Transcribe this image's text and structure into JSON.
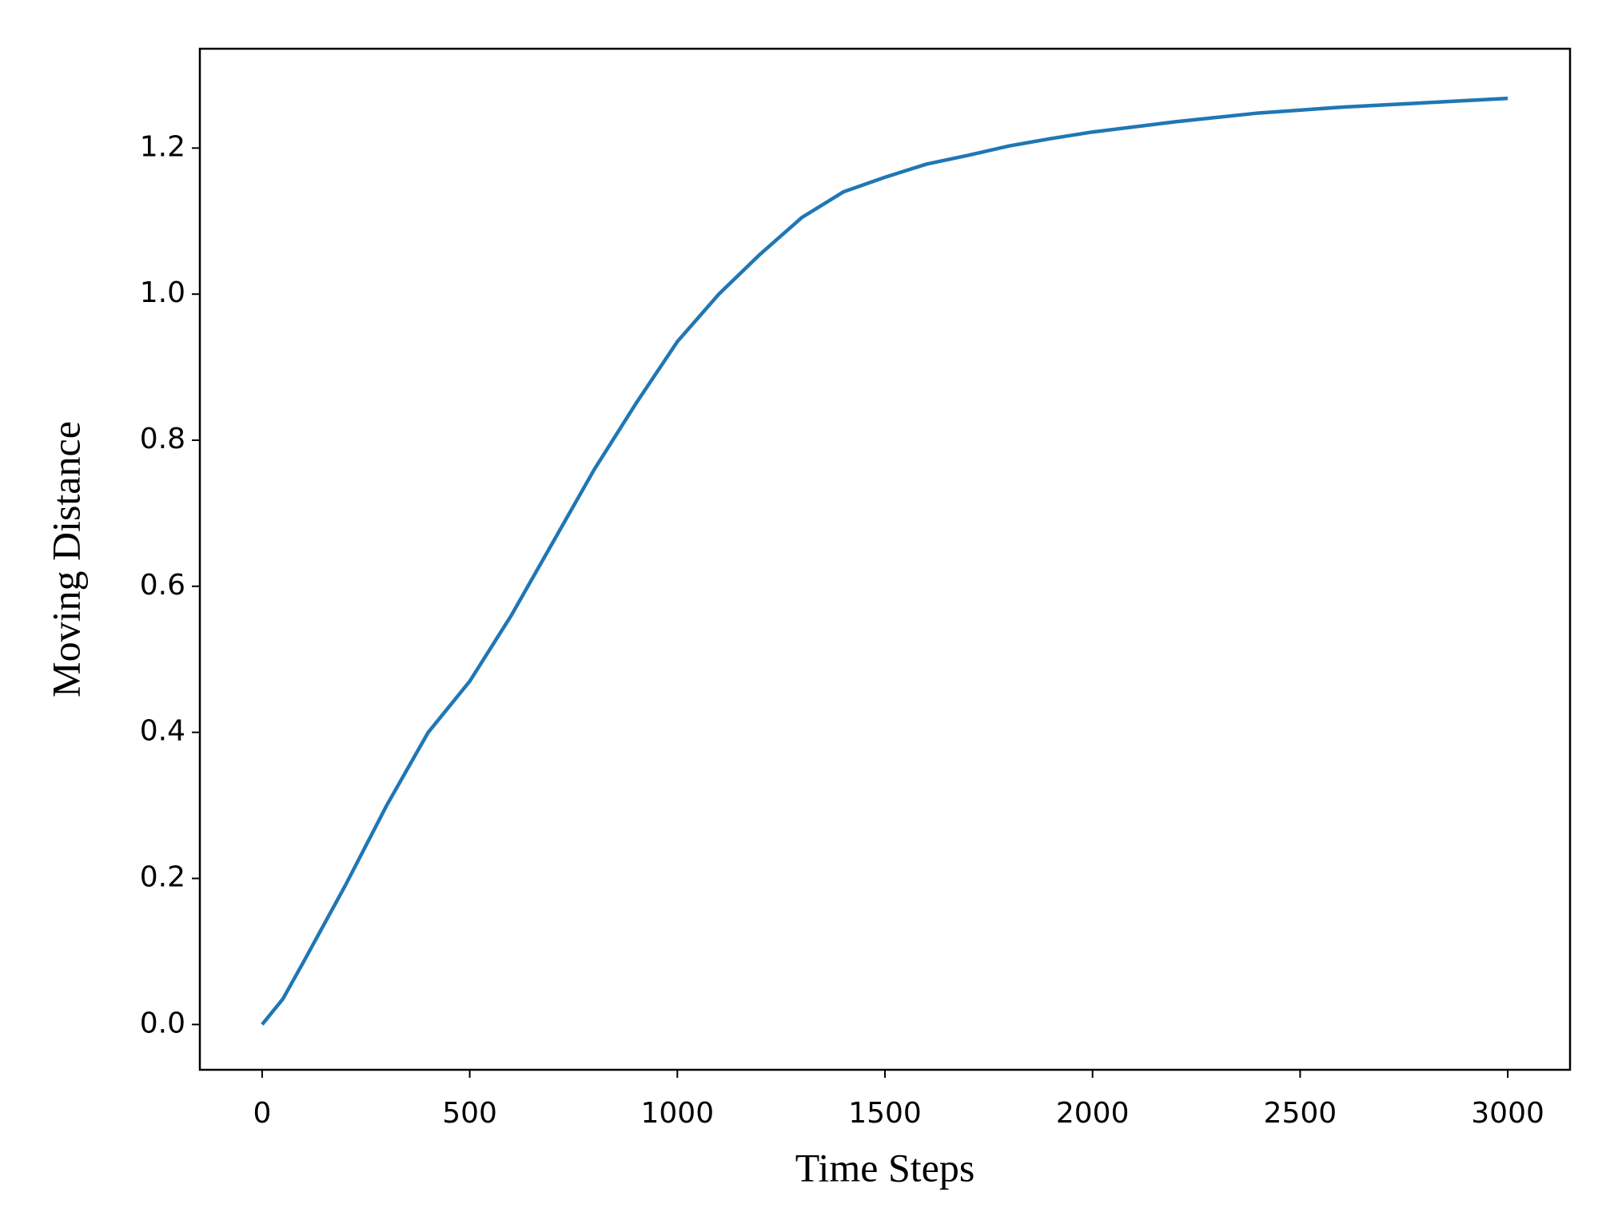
{
  "chart_data": {
    "type": "line",
    "x_label": "Time Steps",
    "y_label": "Moving Distance",
    "x": [
      0,
      50,
      100,
      200,
      300,
      400,
      500,
      600,
      700,
      800,
      900,
      1000,
      1100,
      1200,
      1300,
      1400,
      1500,
      1600,
      1700,
      1800,
      1900,
      2000,
      2200,
      2400,
      2600,
      2800,
      3000
    ],
    "series": [
      {
        "color": "#1f77b4",
        "values": [
          0,
          0.035,
          0.086,
          0.19,
          0.3,
          0.4,
          0.47,
          0.56,
          0.66,
          0.76,
          0.85,
          0.935,
          1.0,
          1.055,
          1.105,
          1.14,
          1.16,
          1.178,
          1.19,
          1.203,
          1.213,
          1.222,
          1.236,
          1.248,
          1.256,
          1.262,
          1.268
        ]
      }
    ],
    "xlim": [
      -150,
      3150
    ],
    "ylim": [
      -0.062,
      1.336
    ],
    "xticks": [
      0,
      500,
      1000,
      1500,
      2000,
      2500,
      3000
    ],
    "yticks": [
      {
        "value": 0,
        "label": "0.0"
      },
      0.2,
      0.4,
      0.6,
      0.8,
      {
        "value": 1,
        "label": "1.0"
      },
      1.2
    ]
  }
}
